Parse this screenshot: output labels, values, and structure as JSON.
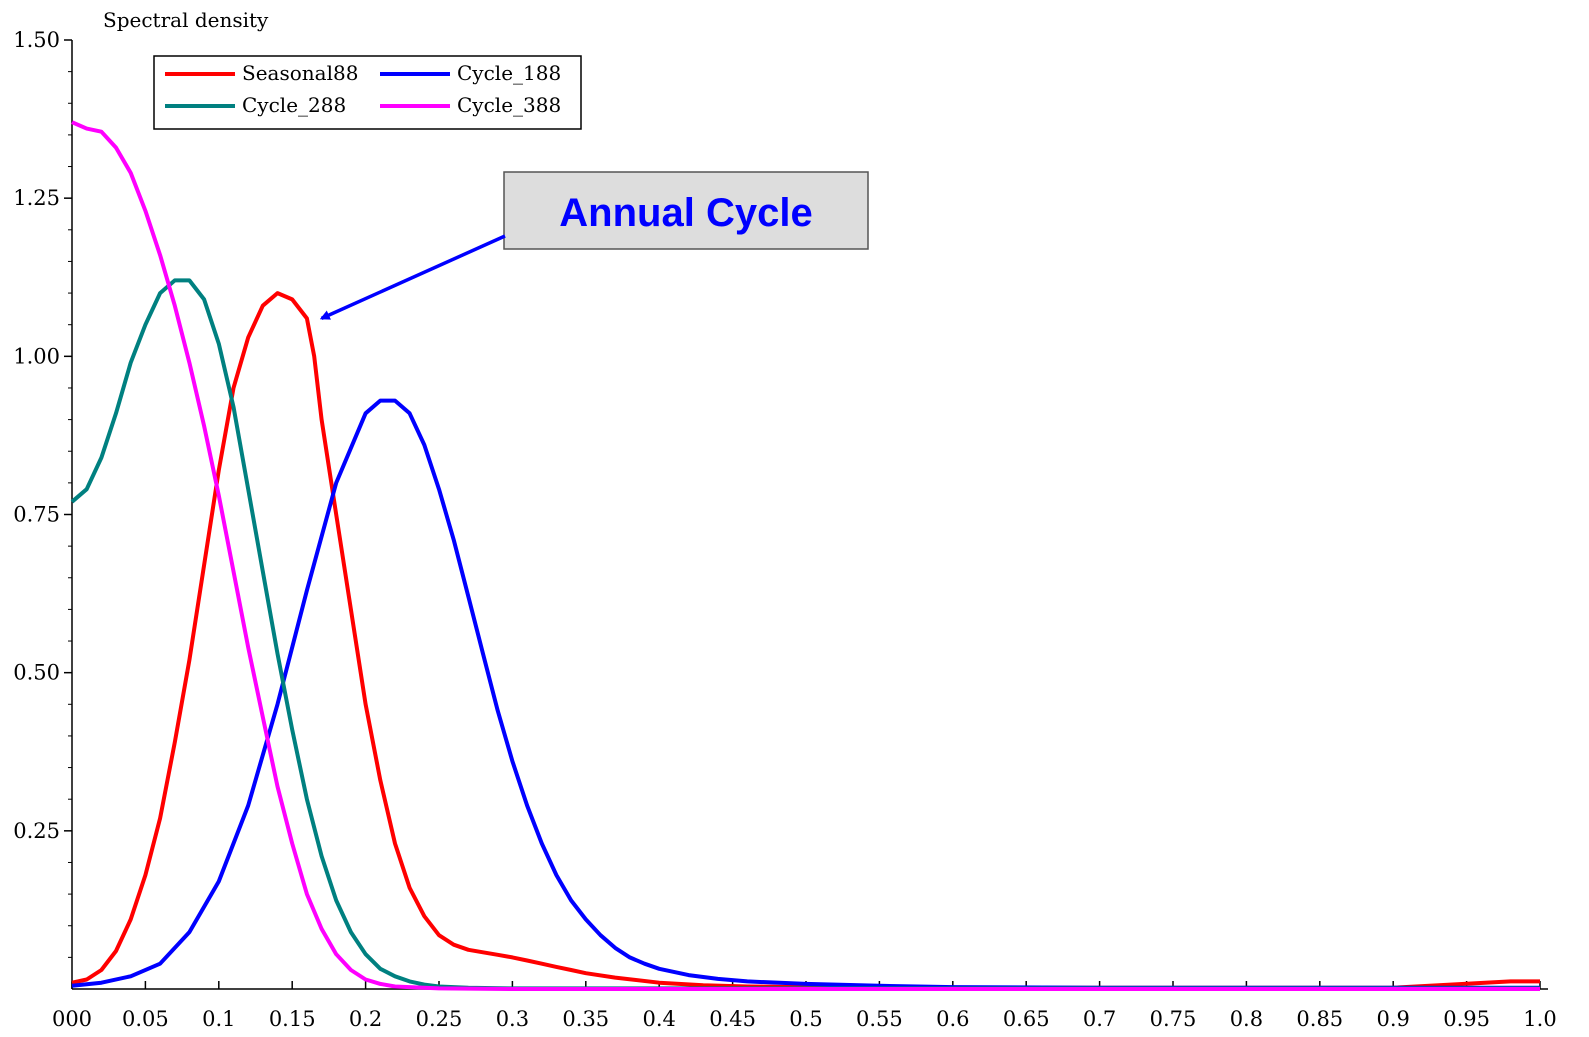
{
  "chart_data": {
    "type": "line",
    "ylabel": "Spectral density",
    "xlabel": "",
    "xlim": [
      0,
      1
    ],
    "ylim": [
      0,
      1.5
    ],
    "grid": false,
    "legend_position": "top-left",
    "x_ticks": [
      {
        "value": 0,
        "label": "000"
      },
      {
        "value": 0.05,
        "label": "0.05"
      },
      {
        "value": 0.1,
        "label": "0.1"
      },
      {
        "value": 0.15,
        "label": "0.15"
      },
      {
        "value": 0.2,
        "label": "0.2"
      },
      {
        "value": 0.25,
        "label": "0.25"
      },
      {
        "value": 0.3,
        "label": "0.3"
      },
      {
        "value": 0.35,
        "label": "0.35"
      },
      {
        "value": 0.4,
        "label": "0.4"
      },
      {
        "value": 0.45,
        "label": "0.45"
      },
      {
        "value": 0.5,
        "label": "0.5"
      },
      {
        "value": 0.55,
        "label": "0.55"
      },
      {
        "value": 0.6,
        "label": "0.6"
      },
      {
        "value": 0.65,
        "label": "0.65"
      },
      {
        "value": 0.7,
        "label": "0.7"
      },
      {
        "value": 0.75,
        "label": "0.75"
      },
      {
        "value": 0.8,
        "label": "0.8"
      },
      {
        "value": 0.85,
        "label": "0.85"
      },
      {
        "value": 0.9,
        "label": "0.9"
      },
      {
        "value": 0.95,
        "label": "0.95"
      },
      {
        "value": 1.0,
        "label": "1.0"
      }
    ],
    "y_ticks": [
      {
        "value": 0.25,
        "label": "0.25"
      },
      {
        "value": 0.5,
        "label": "0.50"
      },
      {
        "value": 0.75,
        "label": "0.75"
      },
      {
        "value": 1.0,
        "label": "1.00"
      },
      {
        "value": 1.25,
        "label": "1.25"
      },
      {
        "value": 1.5,
        "label": "1.50"
      }
    ],
    "series": [
      {
        "name": "Seasonal88",
        "color": "#ff0000",
        "x": [
          0,
          0.01,
          0.02,
          0.03,
          0.04,
          0.05,
          0.06,
          0.07,
          0.08,
          0.09,
          0.1,
          0.11,
          0.12,
          0.13,
          0.14,
          0.15,
          0.16,
          0.165,
          0.17,
          0.18,
          0.19,
          0.2,
          0.21,
          0.22,
          0.23,
          0.24,
          0.25,
          0.26,
          0.27,
          0.28,
          0.29,
          0.3,
          0.31,
          0.32,
          0.33,
          0.34,
          0.35,
          0.37,
          0.4,
          0.43,
          0.46,
          0.5,
          0.55,
          0.6,
          0.7,
          0.8,
          0.9,
          0.98,
          1.0
        ],
        "y": [
          0.01,
          0.015,
          0.03,
          0.06,
          0.11,
          0.18,
          0.27,
          0.39,
          0.52,
          0.67,
          0.82,
          0.95,
          1.03,
          1.08,
          1.1,
          1.09,
          1.06,
          1.0,
          0.9,
          0.75,
          0.6,
          0.45,
          0.33,
          0.23,
          0.16,
          0.115,
          0.085,
          0.07,
          0.062,
          0.058,
          0.054,
          0.05,
          0.045,
          0.04,
          0.035,
          0.03,
          0.025,
          0.018,
          0.01,
          0.006,
          0.004,
          0.003,
          0.002,
          0.002,
          0.002,
          0.002,
          0.002,
          0.012,
          0.012
        ]
      },
      {
        "name": "Cycle_188",
        "color": "#0000ff",
        "x": [
          0,
          0.02,
          0.04,
          0.06,
          0.08,
          0.1,
          0.12,
          0.14,
          0.16,
          0.18,
          0.2,
          0.21,
          0.22,
          0.23,
          0.24,
          0.25,
          0.26,
          0.27,
          0.28,
          0.29,
          0.3,
          0.31,
          0.32,
          0.33,
          0.34,
          0.35,
          0.36,
          0.37,
          0.38,
          0.39,
          0.4,
          0.42,
          0.44,
          0.46,
          0.5,
          0.55,
          0.6,
          0.7,
          0.8,
          0.9,
          1.0
        ],
        "y": [
          0.005,
          0.01,
          0.02,
          0.04,
          0.09,
          0.17,
          0.29,
          0.45,
          0.63,
          0.8,
          0.91,
          0.93,
          0.93,
          0.91,
          0.86,
          0.79,
          0.71,
          0.62,
          0.53,
          0.44,
          0.36,
          0.29,
          0.23,
          0.18,
          0.14,
          0.11,
          0.085,
          0.065,
          0.05,
          0.04,
          0.032,
          0.022,
          0.016,
          0.012,
          0.008,
          0.005,
          0.003,
          0.002,
          0.002,
          0.002,
          0.002
        ]
      },
      {
        "name": "Cycle_288",
        "color": "#008080",
        "x": [
          0,
          0.01,
          0.02,
          0.03,
          0.04,
          0.05,
          0.06,
          0.07,
          0.075,
          0.08,
          0.09,
          0.1,
          0.11,
          0.12,
          0.13,
          0.14,
          0.15,
          0.16,
          0.17,
          0.18,
          0.19,
          0.2,
          0.21,
          0.22,
          0.23,
          0.24,
          0.25,
          0.27,
          0.3,
          0.35,
          0.4,
          0.5,
          0.6,
          0.7,
          0.8,
          0.9,
          1.0
        ],
        "y": [
          0.77,
          0.79,
          0.84,
          0.91,
          0.99,
          1.05,
          1.1,
          1.12,
          1.12,
          1.12,
          1.09,
          1.02,
          0.92,
          0.79,
          0.66,
          0.53,
          0.41,
          0.3,
          0.21,
          0.14,
          0.09,
          0.055,
          0.032,
          0.02,
          0.012,
          0.007,
          0.004,
          0.002,
          0.001,
          0.001,
          0.001,
          0.001,
          0.001,
          0.001,
          0.001,
          0.001,
          0.001
        ]
      },
      {
        "name": "Cycle_388",
        "color": "#ff00ff",
        "x": [
          0,
          0.01,
          0.02,
          0.03,
          0.04,
          0.05,
          0.06,
          0.07,
          0.08,
          0.09,
          0.1,
          0.11,
          0.12,
          0.13,
          0.14,
          0.15,
          0.16,
          0.17,
          0.18,
          0.19,
          0.2,
          0.21,
          0.22,
          0.25,
          0.3,
          0.4,
          0.5,
          0.6,
          0.7,
          0.8,
          0.9,
          1.0
        ],
        "y": [
          1.37,
          1.36,
          1.355,
          1.33,
          1.29,
          1.23,
          1.16,
          1.08,
          0.99,
          0.89,
          0.78,
          0.66,
          0.54,
          0.43,
          0.32,
          0.23,
          0.15,
          0.095,
          0.055,
          0.03,
          0.015,
          0.008,
          0.004,
          0.001,
          0.0,
          0.0,
          0.0,
          0.0,
          0.0,
          0.0,
          0.0,
          0.0
        ]
      }
    ],
    "annotation": {
      "text": "Annual Cycle",
      "target": {
        "x": 0.17,
        "y": 1.06
      },
      "color": "#0000ff",
      "box_fill": "#dddddd"
    }
  }
}
